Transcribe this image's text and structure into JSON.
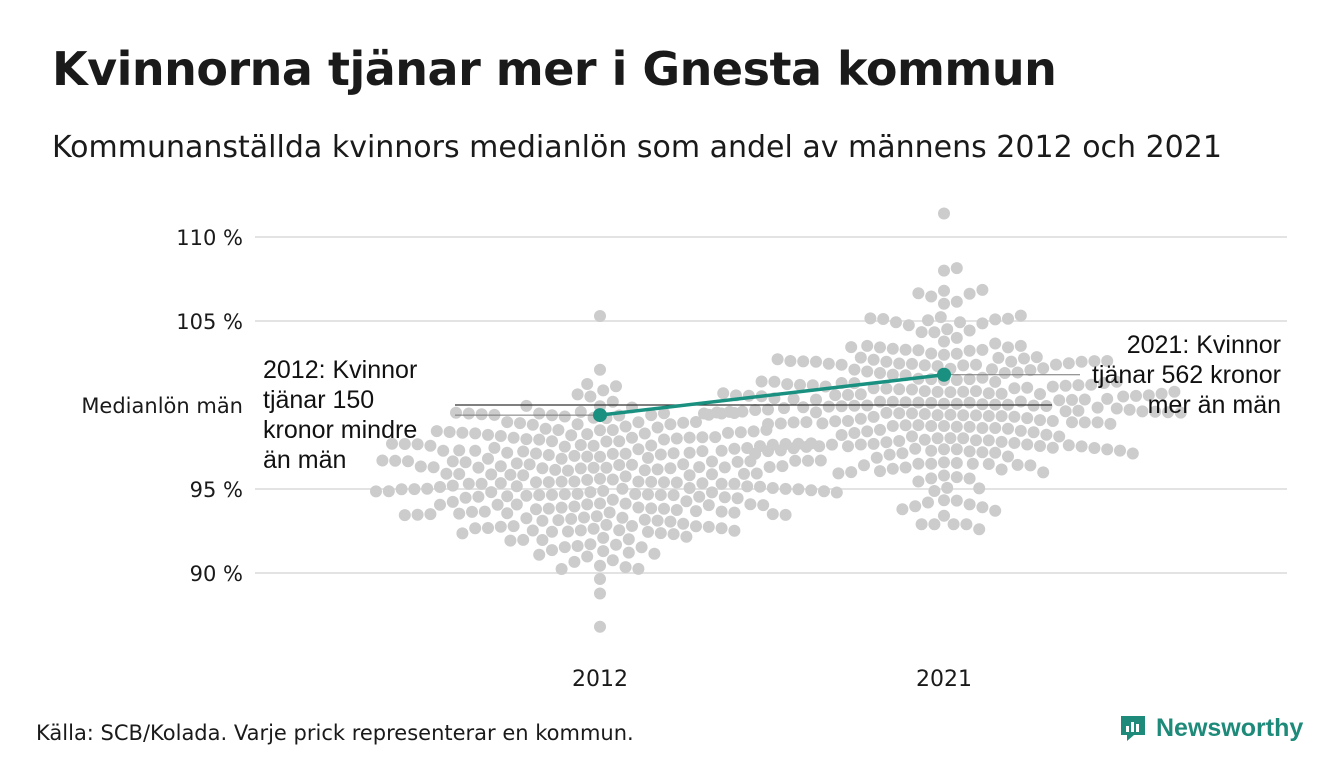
{
  "title": "Kvinnorna tjänar mer i Gnesta kommun",
  "subtitle": "Kommunanställda kvinnors medianlön som andel av männens 2012 och 2021",
  "source": "Källa: SCB/Kolada. Varje prick representerar en kommun.",
  "brand": "Newsworthy",
  "colors": {
    "dots": "#cccccc",
    "highlight": "#1a9180",
    "grid": "#e3e3e3",
    "text": "#1a1a1a"
  },
  "chart_data": {
    "type": "scatter",
    "y_ticks": [
      {
        "value": 90,
        "label": "90 %"
      },
      {
        "value": 95,
        "label": "95 %"
      },
      {
        "value": 105,
        "label": "105 %"
      },
      {
        "value": 110,
        "label": "110 %"
      }
    ],
    "reference": {
      "value": 100,
      "label": "Medianlön män"
    },
    "ylim": [
      86,
      111.5
    ],
    "categories": [
      "2012",
      "2021"
    ],
    "swarm_2012": {
      "n": 290,
      "median": 95.6,
      "spread": 2.6,
      "min": 86.8,
      "max": 105.3
    },
    "swarm_2021": {
      "n": 290,
      "median": 100.1,
      "spread": 2.9,
      "min": 92.6,
      "max": 111.4
    },
    "highlight": {
      "name": "Gnesta",
      "values": [
        {
          "x": "2012",
          "y": 99.4
        },
        {
          "x": "2021",
          "y": 101.8
        }
      ]
    },
    "annotations": [
      {
        "year": "2012",
        "lines": [
          "2012: Kvinnor",
          "tjänar 150",
          "kronor mindre",
          "än män"
        ]
      },
      {
        "year": "2021",
        "lines": [
          "2021: Kvinnor",
          "tjänar 562 kronor",
          "mer än män"
        ]
      }
    ]
  }
}
